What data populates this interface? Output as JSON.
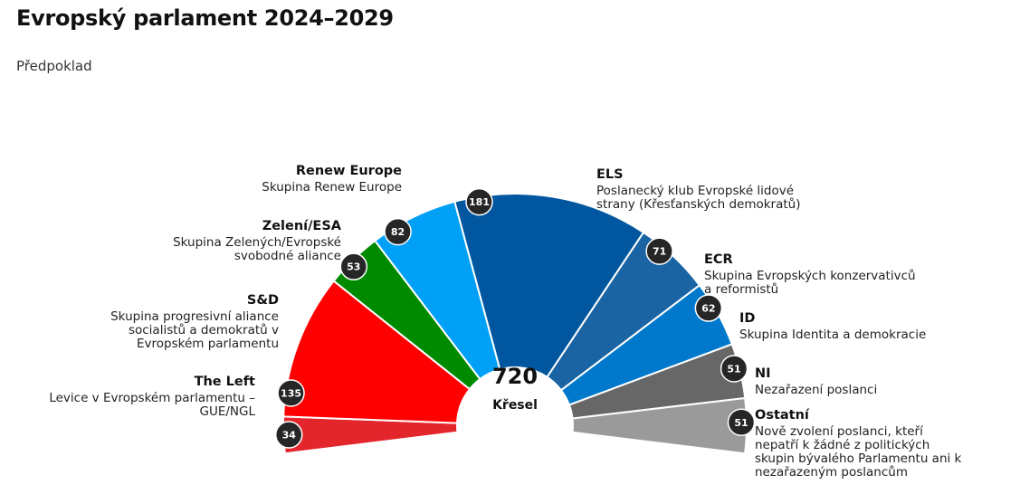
{
  "title": "Evropský parlament 2024–2029",
  "subtitle": "Předpoklad",
  "chart_data": {
    "type": "pie",
    "variant": "half-donut parliament chart",
    "total": 720,
    "total_label": "Křesel",
    "segments": [
      {
        "name": "The Left",
        "description": [
          "Levice v Evropském parlamentu –",
          "GUE/NGL"
        ],
        "value": 34,
        "color": "#e3262c"
      },
      {
        "name": "S&D",
        "description": [
          "Skupina progresivní aliance",
          "socialistů a demokratů v",
          "Evropském parlamentu"
        ],
        "value": 135,
        "color": "#ff0000"
      },
      {
        "name": "Zelení/ESA",
        "description": [
          "Skupina Zelených/Evropské",
          "svobodné aliance"
        ],
        "value": 53,
        "color": "#008a00"
      },
      {
        "name": "Renew Europe",
        "description": [
          "Skupina Renew Europe"
        ],
        "value": 82,
        "color": "#00a0f6"
      },
      {
        "name": "ELS",
        "description": [
          "Poslanecký klub Evropské lidové",
          "strany (Křesťanských demokratů)"
        ],
        "value": 181,
        "color": "#0057a0"
      },
      {
        "name": "ECR",
        "description": [
          "Skupina Evropských konzervativců",
          "a reformistů"
        ],
        "value": 71,
        "color": "#1b64a4"
      },
      {
        "name": "ID",
        "description": [
          "Skupina Identita a demokracie"
        ],
        "value": 62,
        "color": "#0079cc"
      },
      {
        "name": "NI",
        "description": [
          "Nezařazení poslanci"
        ],
        "value": 51,
        "color": "#676767"
      },
      {
        "name": "Ostatní",
        "description": [
          "Nově zvolení poslanci, kteří",
          "nepatří k žádné z politických",
          "skupin bývalého Parlamentu ani k",
          "nezařazeným poslancům"
        ],
        "value": 51,
        "color": "#9a9a9a"
      }
    ]
  }
}
